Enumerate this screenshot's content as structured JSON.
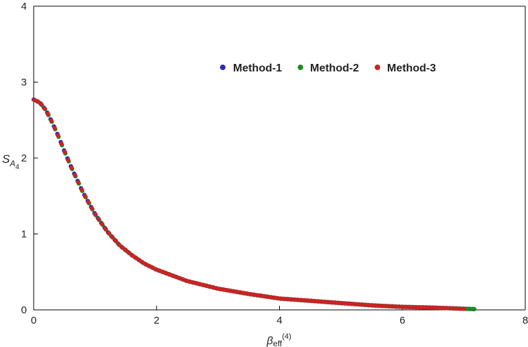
{
  "chart_data": {
    "type": "scatter",
    "title": "",
    "xlabel": "β",
    "xlabel_sub": "eff",
    "xlabel_sup": "(4)",
    "ylabel": "S",
    "ylabel_sub": "A",
    "ylabel_subsub": "4",
    "xlim": [
      0,
      8
    ],
    "ylim": [
      0,
      4
    ],
    "x_ticks": [
      {
        "value": 0,
        "label": "0"
      },
      {
        "value": 2,
        "label": "2"
      },
      {
        "value": 4,
        "label": "4"
      },
      {
        "value": 6,
        "label": "6"
      },
      {
        "value": 8,
        "label": "8"
      }
    ],
    "y_ticks": [
      {
        "value": 0,
        "label": "0"
      },
      {
        "value": 1,
        "label": "1"
      },
      {
        "value": 2,
        "label": "2"
      },
      {
        "value": 3,
        "label": "3"
      },
      {
        "value": 4,
        "label": "4"
      }
    ],
    "grid": false,
    "legend_position": "top-center",
    "series": [
      {
        "name": "Method-1",
        "color": "#2b2bb5",
        "x": [
          0,
          0.1,
          0.2,
          0.3,
          0.4,
          0.5,
          0.6,
          0.8,
          1.0,
          1.2,
          1.4,
          1.6,
          1.8,
          2.0,
          2.5,
          3.0,
          3.5,
          4.0,
          4.5,
          5.0,
          5.5,
          6.0,
          6.5,
          7.0,
          7.2
        ],
        "y": [
          2.77,
          2.73,
          2.63,
          2.47,
          2.29,
          2.09,
          1.9,
          1.55,
          1.26,
          1.03,
          0.85,
          0.72,
          0.61,
          0.53,
          0.38,
          0.28,
          0.21,
          0.15,
          0.12,
          0.09,
          0.06,
          0.04,
          0.03,
          0.015,
          0.01
        ]
      },
      {
        "name": "Method-2",
        "color": "#1f8a1f",
        "x": [
          0,
          0.1,
          0.2,
          0.3,
          0.4,
          0.5,
          0.6,
          0.8,
          1.0,
          1.2,
          1.4,
          1.6,
          1.8,
          2.0,
          2.5,
          3.0,
          3.5,
          4.0,
          4.5,
          5.0,
          5.5,
          6.0,
          6.5,
          7.0,
          7.2
        ],
        "y": [
          2.77,
          2.73,
          2.63,
          2.47,
          2.29,
          2.09,
          1.9,
          1.55,
          1.26,
          1.03,
          0.85,
          0.72,
          0.61,
          0.53,
          0.38,
          0.28,
          0.21,
          0.15,
          0.12,
          0.09,
          0.06,
          0.04,
          0.03,
          0.015,
          0.01
        ]
      },
      {
        "name": "Method-3",
        "color": "#cc2222",
        "x": [
          0,
          0.1,
          0.2,
          0.3,
          0.4,
          0.5,
          0.6,
          0.8,
          1.0,
          1.2,
          1.4,
          1.6,
          1.8,
          2.0,
          2.5,
          3.0,
          3.5,
          4.0,
          4.5,
          5.0,
          5.5,
          6.0,
          6.5,
          7.0
        ],
        "y": [
          2.77,
          2.73,
          2.63,
          2.47,
          2.29,
          2.09,
          1.9,
          1.55,
          1.26,
          1.03,
          0.85,
          0.72,
          0.61,
          0.53,
          0.38,
          0.28,
          0.21,
          0.15,
          0.12,
          0.09,
          0.06,
          0.04,
          0.03,
          0.015
        ]
      }
    ]
  }
}
